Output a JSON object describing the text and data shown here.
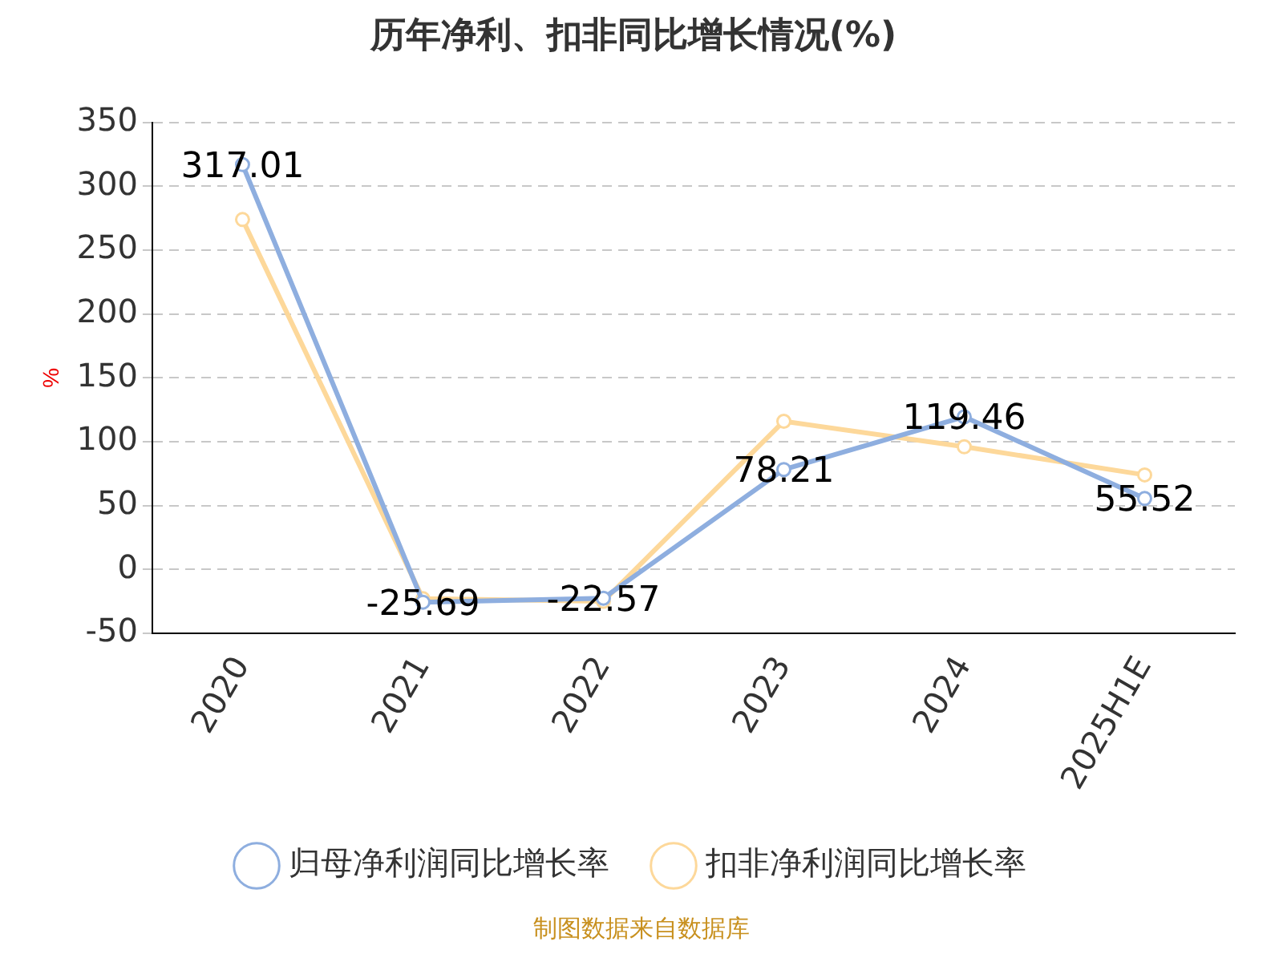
{
  "chart_data": {
    "type": "line",
    "title": "历年净利、扣非同比增长情况(%)",
    "ylabel": "%",
    "categories": [
      "2020",
      "2021",
      "2022",
      "2023",
      "2024",
      "2025H1E"
    ],
    "series": [
      {
        "name": "归母净利润同比增长率",
        "color": "#8eaedf",
        "values": [
          317.01,
          -25.69,
          -22.57,
          78.21,
          119.46,
          55.52
        ],
        "value_labels": [
          "317.01",
          "-25.69",
          "-22.57",
          "78.21",
          "119.46",
          "55.52"
        ]
      },
      {
        "name": "扣非净利润同比增长率",
        "color": "#fdd89a",
        "values": [
          274,
          -23,
          -25,
          116,
          96,
          74
        ]
      }
    ],
    "ylim": [
      -50,
      350
    ],
    "yticks": [
      -50,
      0,
      50,
      100,
      150,
      200,
      250,
      300,
      350
    ],
    "grid": "y",
    "legend": "bottom",
    "marker": "circle",
    "line_style": "solid",
    "annotations": [
      "制图数据来自数据库"
    ]
  }
}
